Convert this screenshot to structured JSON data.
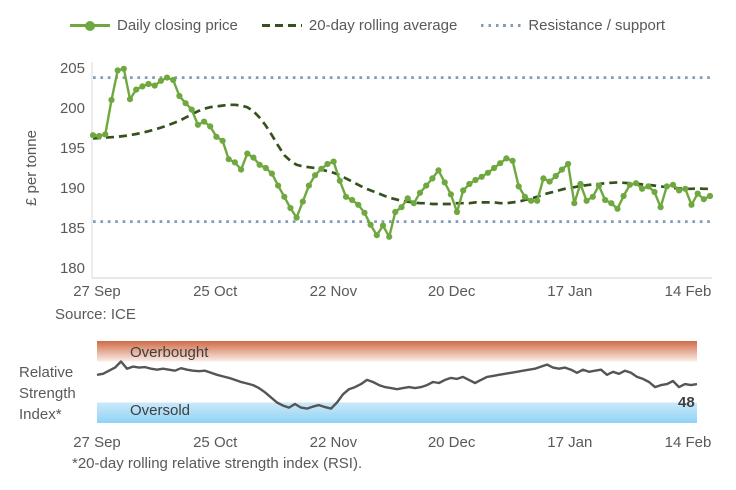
{
  "legend": {
    "items": [
      {
        "label": "Daily closing price",
        "swatch": "green-line-with-marker"
      },
      {
        "label": "20-day rolling average",
        "swatch": "dark-green-dashed-line"
      },
      {
        "label": "Resistance / support",
        "swatch": "blue-gray-dotted-line"
      }
    ]
  },
  "source_note": "Source: ICE",
  "footnote": "*20-day rolling relative strength index (RSI).",
  "rsi_panel": {
    "side_label_lines": [
      "Relative",
      "Strength",
      "Index*"
    ],
    "last_value_label": "48"
  },
  "palette": {
    "price_green": "#6fa83f",
    "avg_dark_green": "#35511d",
    "resistance_blue_gray": "#7f9db4",
    "rsi_line_gray": "#555555",
    "text_gray": "#595959",
    "axis_gray": "#d9d9d9",
    "band_label_dark": "#3f3f3f",
    "overbought_top": "#cf6b46",
    "overbought_bottom": "#fbeee8",
    "oversold_top": "#cce8f9",
    "oversold_bottom": "#8fd3f6"
  },
  "chart_data": [
    {
      "type": "line",
      "title": "",
      "xlabel": "",
      "ylabel": "£ per tonne",
      "ylim": [
        180,
        206
      ],
      "y_ticks": [
        180,
        185,
        190,
        195,
        200,
        205
      ],
      "x_tick_labels": [
        "27 Sep",
        "25 Oct",
        "22 Nov",
        "20 Dec",
        "17 Jan",
        "14 Feb"
      ],
      "grid": false,
      "legend_position": "top",
      "source": "Source: ICE",
      "series": [
        {
          "name": "Daily closing price",
          "style": "solid-with-markers",
          "color": "#6fa83f",
          "values": [
            196.6,
            196.5,
            196.7,
            201.0,
            204.7,
            204.9,
            201.1,
            202.3,
            202.7,
            203.0,
            202.8,
            203.4,
            203.8,
            203.5,
            201.5,
            200.6,
            199.8,
            197.9,
            198.3,
            197.7,
            196.4,
            195.9,
            193.6,
            193.2,
            192.3,
            194.3,
            193.8,
            192.9,
            192.5,
            191.8,
            190.3,
            188.9,
            187.5,
            186.3,
            188.3,
            190.3,
            191.6,
            192.4,
            193.0,
            193.3,
            190.9,
            188.9,
            188.5,
            187.9,
            186.9,
            185.4,
            184.1,
            185.3,
            183.9,
            187.0,
            187.6,
            188.7,
            188.1,
            189.4,
            190.3,
            191.2,
            192.2,
            190.7,
            189.2,
            187.0,
            189.7,
            190.5,
            191.0,
            191.4,
            191.9,
            192.5,
            193.1,
            193.7,
            193.4,
            190.2,
            188.9,
            188.4,
            188.4,
            191.2,
            190.8,
            191.5,
            192.3,
            193.0,
            188.1,
            190.5,
            188.4,
            188.9,
            190.3,
            188.5,
            188.1,
            187.4,
            189.0,
            190.4,
            190.6,
            189.9,
            190.2,
            189.5,
            187.6,
            190.2,
            190.4,
            189.7,
            189.9,
            187.9,
            189.3,
            188.6,
            189.0
          ]
        },
        {
          "name": "20-day rolling average",
          "style": "dashed",
          "color": "#35511d",
          "values": [
            196.2,
            196.25,
            196.3,
            196.35,
            196.4,
            196.5,
            196.6,
            196.75,
            196.9,
            197.1,
            197.3,
            197.55,
            197.8,
            198.1,
            198.4,
            198.8,
            199.2,
            199.6,
            199.9,
            200.1,
            200.2,
            200.3,
            200.4,
            200.4,
            200.3,
            200.1,
            199.6,
            198.8,
            197.8,
            196.6,
            195.3,
            194.1,
            193.4,
            192.9,
            192.7,
            192.6,
            192.5,
            192.3,
            192.1,
            191.9,
            191.6,
            191.2,
            190.8,
            190.4,
            190.0,
            189.7,
            189.4,
            189.1,
            188.8,
            188.6,
            188.4,
            188.3,
            188.2,
            188.1,
            188.1,
            188.0,
            188.0,
            188.0,
            188.0,
            188.1,
            188.1,
            188.1,
            188.2,
            188.2,
            188.2,
            188.2,
            188.1,
            188.1,
            188.2,
            188.3,
            188.5,
            188.7,
            188.9,
            189.2,
            189.4,
            189.6,
            189.8,
            190.0,
            190.1,
            190.25,
            190.35,
            190.45,
            190.5,
            190.6,
            190.65,
            190.7,
            190.65,
            190.6,
            190.55,
            190.45,
            190.4,
            190.3,
            190.2,
            190.1,
            190.0,
            189.95,
            189.9,
            189.9,
            189.95,
            189.9,
            189.9
          ]
        },
        {
          "name": "Resistance / support",
          "style": "horizontal-dotted-lines",
          "color": "#7f9db4",
          "levels": [
            203.8,
            185.8
          ]
        }
      ]
    },
    {
      "type": "line",
      "title": "Relative Strength Index*",
      "ylim": [
        10,
        90
      ],
      "x_tick_labels": [
        "27 Sep",
        "25 Oct",
        "22 Nov",
        "20 Dec",
        "17 Jan",
        "14 Feb"
      ],
      "bands": [
        {
          "label": "Overbought",
          "threshold": 70,
          "side": "above"
        },
        {
          "label": "Oversold",
          "threshold": 30,
          "side": "below"
        }
      ],
      "last_value": 48,
      "footnote": "*20-day rolling relative strength index (RSI).",
      "series": [
        {
          "name": "20-day rolling RSI",
          "style": "solid",
          "color": "#555555",
          "values": [
            57,
            58,
            61,
            64,
            70,
            63,
            65,
            64,
            64.5,
            63,
            62,
            63,
            62,
            61,
            63.5,
            62,
            61,
            60.5,
            61,
            59,
            57,
            55.5,
            54,
            52,
            50,
            48.5,
            47,
            44,
            40,
            35,
            30,
            27,
            25,
            28.5,
            25,
            24,
            26,
            27.5,
            25.5,
            24,
            30,
            38,
            43,
            45,
            48,
            52,
            50,
            47,
            45,
            44,
            43,
            44,
            45,
            44,
            45,
            47,
            50,
            49,
            52,
            54,
            53,
            55,
            52,
            49,
            52,
            55,
            56,
            57,
            58,
            59,
            60,
            61,
            62,
            63,
            65,
            67,
            64,
            63,
            64,
            62,
            59,
            62,
            60,
            61,
            62,
            57,
            60,
            58,
            61,
            59,
            55,
            53,
            50,
            45,
            47,
            48,
            51,
            45,
            48,
            47,
            48
          ]
        }
      ]
    }
  ]
}
